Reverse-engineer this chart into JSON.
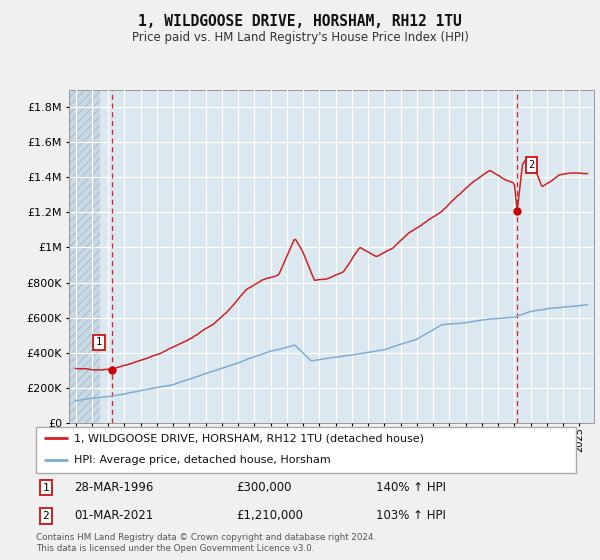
{
  "title": "1, WILDGOOSE DRIVE, HORSHAM, RH12 1TU",
  "subtitle": "Price paid vs. HM Land Registry's House Price Index (HPI)",
  "legend_line1": "1, WILDGOOSE DRIVE, HORSHAM, RH12 1TU (detached house)",
  "legend_line2": "HPI: Average price, detached house, Horsham",
  "footnote": "Contains HM Land Registry data © Crown copyright and database right 2024.\nThis data is licensed under the Open Government Licence v3.0.",
  "sale1_date": "28-MAR-1996",
  "sale1_price": "£300,000",
  "sale1_hpi": "140% ↑ HPI",
  "sale2_date": "01-MAR-2021",
  "sale2_price": "£1,210,000",
  "sale2_hpi": "103% ↑ HPI",
  "red_color": "#cc2222",
  "blue_color": "#7eadd4",
  "dot_color": "#cc0000",
  "vline_color": "#cc0000",
  "plot_bg": "#dce8f0",
  "fig_bg": "#f0f0f0",
  "grid_color": "#ffffff",
  "hatch_bg": "#c8d8e4",
  "sale1_x": 1996.24,
  "sale1_y": 300000,
  "sale2_x": 2021.17,
  "sale2_y": 1210000,
  "ylim_max": 1900000,
  "yticks": [
    0,
    200000,
    400000,
    600000,
    800000,
    1000000,
    1200000,
    1400000,
    1600000,
    1800000
  ],
  "xlim_left": 1993.6,
  "xlim_right": 2025.9
}
